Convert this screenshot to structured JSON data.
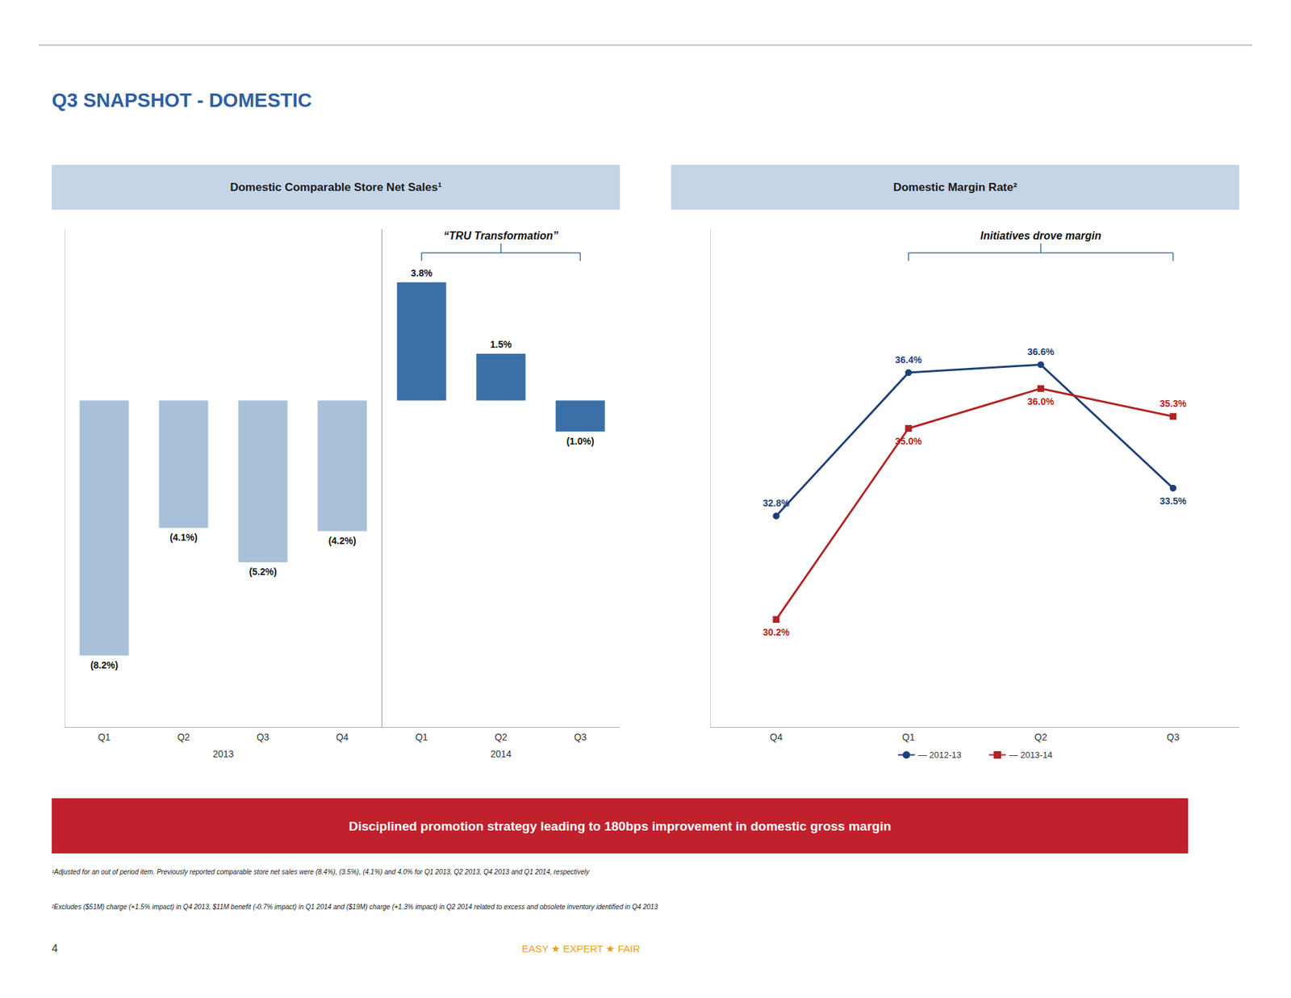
{
  "title": "Q3 SNAPSHOT - DOMESTIC",
  "annotations": [
    "Disciplined promotion strategy leading to 180bps improvement in domestic gross margin",
    "¹Adjusted for an out of period item. Previously reported comparable store net sales were (8.4%), (3.5%), (4.1%) and 4.0% for Q1 2013, Q2 2013, Q4 2013 and Q1 2014, respectively",
    "²Excludes ($51M) charge (+1.5% impact) in Q4 2013, $11M benefit (-0.7% impact) in Q1 2014 and ($19M) charge (+1.3% impact) in Q2 2014 related to excess and obsolete inventory identified in Q4 2013",
    "EASY ★ EXPERT ★ FAIR",
    "4"
  ],
  "chart_data": [
    {
      "type": "bar",
      "title": "Domestic Comparable Store Net Sales¹",
      "categories": [
        "Q1",
        "Q2",
        "Q3",
        "Q4",
        "Q1",
        "Q2",
        "Q3"
      ],
      "series": [
        {
          "name": "2013",
          "color": "#A8C0D8",
          "values": [
            -8.2,
            -4.1,
            -5.2,
            -4.2,
            null,
            null,
            null
          ],
          "value_labels": [
            "(8.2%)",
            "(4.1%)",
            "(5.2%)",
            "(4.2%)",
            null,
            null,
            null
          ]
        },
        {
          "name": "2014",
          "color": "#3A6FA8",
          "values": [
            null,
            null,
            null,
            null,
            3.8,
            1.5,
            -1.0
          ],
          "value_labels": [
            null,
            null,
            null,
            null,
            "3.8%",
            "1.5%",
            "(1.0%)"
          ]
        }
      ],
      "ylim": [
        -10.5,
        5.5
      ],
      "grid": false,
      "tick_labels": "x",
      "data_labels": true,
      "annotations": [
        "“TRU Transformation”"
      ]
    },
    {
      "type": "line",
      "title": "Domestic Margin Rate²",
      "categories": [
        "Q4",
        "Q1",
        "Q2",
        "Q3"
      ],
      "series": [
        {
          "name": "— 2012-13",
          "color": "#1F3F7A",
          "marker": "circle",
          "values": [
            32.8,
            36.4,
            36.6,
            33.5
          ],
          "value_labels": [
            "32.8%",
            "36.4%",
            "36.6%",
            "33.5%"
          ]
        },
        {
          "name": "— 2013-14",
          "color": "#B22222",
          "marker": "square",
          "values": [
            30.2,
            35.0,
            36.0,
            35.3
          ],
          "value_labels": [
            "30.2%",
            "35.0%",
            "36.0%",
            "35.3%"
          ]
        }
      ],
      "ylim": [
        27.5,
        40
      ],
      "grid": false,
      "tick_labels": "x",
      "data_labels": true,
      "legend": "bottom",
      "annotations": [
        "Initiatives drove margin"
      ]
    }
  ]
}
